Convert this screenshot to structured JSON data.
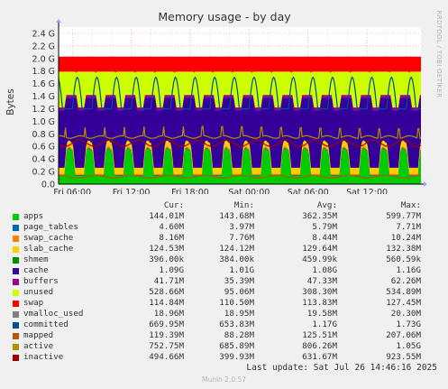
{
  "chart_data": {
    "type": "area",
    "title": "Memory usage - by day",
    "ylabel": "Bytes",
    "side_label": "RRDTOOL / TOBI OETIKER",
    "ylim": [
      0,
      2.5
    ],
    "y_unit": "G",
    "y_ticks": [
      "0.0",
      "0.2 G",
      "0.4 G",
      "0.6 G",
      "0.8 G",
      "1.0 G",
      "1.2 G",
      "1.4 G",
      "1.6 G",
      "1.8 G",
      "2.0 G",
      "2.2 G",
      "2.4 G"
    ],
    "y_tick_values": [
      0,
      0.2,
      0.4,
      0.6,
      0.8,
      1.0,
      1.2,
      1.4,
      1.6,
      1.8,
      2.0,
      2.2,
      2.4
    ],
    "x_ticks": [
      "Fri 06:00",
      "Fri 12:00",
      "Fri 18:00",
      "Sat 00:00",
      "Sat 06:00",
      "Sat 12:00"
    ],
    "x_tick_hours": [
      6,
      12,
      18,
      24,
      30,
      36
    ],
    "x_range_hours": [
      4.6,
      41.5
    ],
    "cycle_period_hours": 2,
    "grid": true,
    "stack_order": [
      "apps",
      "page_tables",
      "swap_cache",
      "slab_cache",
      "cache",
      "buffers",
      "unused",
      "swap"
    ],
    "line_series": [
      "committed",
      "mapped",
      "active",
      "inactive"
    ],
    "approx_profile_G": {
      "apps_peak": 0.55,
      "apps_base": 0.13,
      "stack_top_to_slab": 0.28,
      "cache_high": 1.37,
      "cache_low": 1.17,
      "unused_top": 1.79,
      "swap_top": 2.03,
      "active": 0.75,
      "active_peak": 1.05,
      "inactive": 0.65
    },
    "legend_header": [
      "Cur:",
      "Min:",
      "Avg:",
      "Max:"
    ],
    "series": [
      {
        "name": "apps",
        "color": "#00cc00",
        "cur": "144.01M",
        "min": "143.68M",
        "avg": "362.35M",
        "max": "599.77M"
      },
      {
        "name": "page_tables",
        "color": "#0066b3",
        "cur": "4.60M",
        "min": "3.97M",
        "avg": "5.79M",
        "max": "7.71M"
      },
      {
        "name": "swap_cache",
        "color": "#ff8000",
        "cur": "8.16M",
        "min": "7.76M",
        "avg": "8.44M",
        "max": "10.24M"
      },
      {
        "name": "slab_cache",
        "color": "#ffcc00",
        "cur": "124.53M",
        "min": "124.12M",
        "avg": "129.64M",
        "max": "132.38M"
      },
      {
        "name": "shmem",
        "color": "#008f00",
        "cur": "396.00k",
        "min": "384.00k",
        "avg": "459.99k",
        "max": "560.59k"
      },
      {
        "name": "cache",
        "color": "#330099",
        "cur": "1.09G",
        "min": "1.01G",
        "avg": "1.08G",
        "max": "1.16G"
      },
      {
        "name": "buffers",
        "color": "#990099",
        "cur": "41.71M",
        "min": "35.39M",
        "avg": "47.33M",
        "max": "62.26M"
      },
      {
        "name": "unused",
        "color": "#ccff00",
        "cur": "528.66M",
        "min": "95.06M",
        "avg": "308.30M",
        "max": "534.89M"
      },
      {
        "name": "swap",
        "color": "#ff0000",
        "cur": "114.84M",
        "min": "110.50M",
        "avg": "113.83M",
        "max": "127.45M"
      },
      {
        "name": "vmalloc_used",
        "color": "#808080",
        "cur": "18.96M",
        "min": "18.95M",
        "avg": "19.58M",
        "max": "20.30M"
      },
      {
        "name": "committed",
        "color": "#004d99",
        "cur": "669.95M",
        "min": "653.83M",
        "avg": "1.17G",
        "max": "1.73G"
      },
      {
        "name": "mapped",
        "color": "#b35a00",
        "cur": "119.39M",
        "min": "88.28M",
        "avg": "125.51M",
        "max": "207.06M"
      },
      {
        "name": "active",
        "color": "#b38f00",
        "cur": "752.75M",
        "min": "685.89M",
        "avg": "806.26M",
        "max": "1.05G"
      },
      {
        "name": "inactive",
        "color": "#a00000",
        "cur": "494.66M",
        "min": "399.93M",
        "avg": "631.67M",
        "max": "923.55M"
      }
    ]
  },
  "footer": {
    "last_update": "Last update: Sat Jul 26 14:46:16 2025",
    "generator": "Munin 2.0.57"
  }
}
